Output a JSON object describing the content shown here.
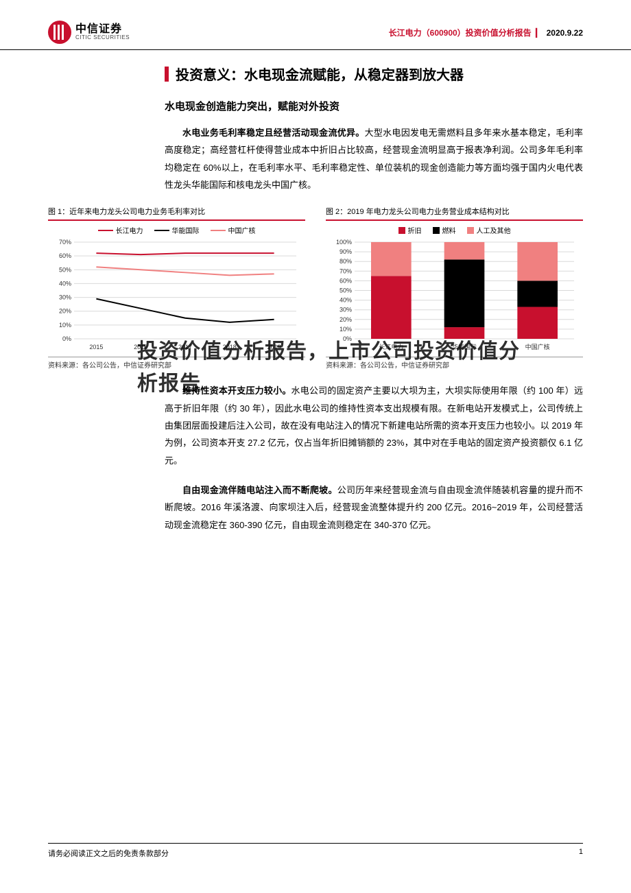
{
  "header": {
    "logo_cn": "中信证券",
    "logo_en": "CITIC SECURITIES",
    "report_name": "长江电力（600900）投资价值分析报告",
    "date": "2020.9.22"
  },
  "section_title": "投资意义：水电现金流赋能，从稳定器到放大器",
  "sub_title": "水电现金创造能力突出，赋能对外投资",
  "para1_bold": "水电业务毛利率稳定且经营活动现金流优异。",
  "para1_rest": "大型水电因发电无需燃料且多年来水基本稳定，毛利率高度稳定；高经营杠杆使得营业成本中折旧占比较高，经营现金流明显高于报表净利润。公司多年毛利率均稳定在 60%以上，在毛利率水平、毛利率稳定性、单位装机的现金创造能力等方面均强于国内火电代表性龙头华能国际和核电龙头中国广核。",
  "chart1": {
    "caption": "图 1：近年来电力龙头公司电力业务毛利率对比",
    "type": "line",
    "legend": [
      "长江电力",
      "华能国际",
      "中国广核"
    ],
    "colors": [
      "#c8102e",
      "#000000",
      "#f08080"
    ],
    "years": [
      "2015",
      "2016",
      "2017",
      "2018",
      "2019"
    ],
    "ylim": [
      0,
      70
    ],
    "ytick_step": 10,
    "grid_color": "#d9d9d9",
    "series": {
      "cjdl": [
        62,
        61,
        62,
        62,
        62
      ],
      "hngj": [
        29,
        22,
        15,
        12,
        14
      ],
      "zggh": [
        52,
        50,
        48,
        46,
        47
      ]
    },
    "source": "资料来源：各公司公告，中信证券研究部"
  },
  "chart2": {
    "caption": "图 2：2019 年电力龙头公司电力业务营业成本结构对比",
    "type": "stacked-bar",
    "legend": [
      "折旧",
      "燃料",
      "人工及其他"
    ],
    "colors": [
      "#c8102e",
      "#000000",
      "#f08080"
    ],
    "categories": [
      "长江电力",
      "华能国际",
      "中国广核"
    ],
    "ylim": [
      0,
      100
    ],
    "ytick_step": 10,
    "grid_color": "#d9d9d9",
    "bar_width": 0.55,
    "data": {
      "cjdl": {
        "dep": 65,
        "fuel": 0,
        "labor": 35
      },
      "hngj": {
        "dep": 12,
        "fuel": 70,
        "labor": 18
      },
      "zggh": {
        "dep": 33,
        "fuel": 27,
        "labor": 40
      }
    },
    "source": "资料来源：各公司公告，中信证券研究部"
  },
  "para2_bold": "维持性资本开支压力较小。",
  "para2_rest": "水电公司的固定资产主要以大坝为主，大坝实际使用年限（约 100 年）远高于折旧年限（约 30 年），因此水电公司的维持性资本支出规模有限。在新电站开发模式上，公司传统上由集团层面投建后注入公司，故在没有电站注入的情况下新建电站所需的资本开支压力也较小。以 2019 年为例，公司资本开支 27.2 亿元，仅占当年折旧摊销额的 23%，其中对在手电站的固定资产投资额仅 6.1 亿元。",
  "para3_bold": "自由现金流伴随电站注入而不断爬坡。",
  "para3_rest": "公司历年来经营现金流与自由现金流伴随装机容量的提升而不断爬坡。2016 年溪洛渡、向家坝注入后，经营现金流整体提升约 200 亿元。2016~2019 年，公司经营活动现金流稳定在 360-390 亿元，自由现金流则稳定在 340-370 亿元。",
  "watermark": "投资价值分析报告，上市公司投资价值分析报告",
  "footer": {
    "disclaimer": "请务必阅读正文之后的免责条款部分",
    "page": "1"
  }
}
